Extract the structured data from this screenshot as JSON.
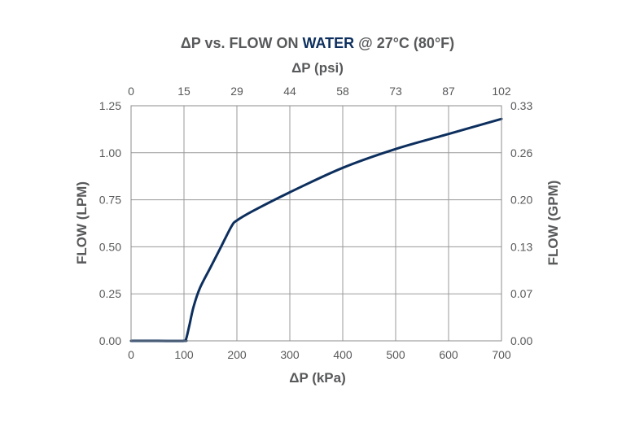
{
  "chart_data": {
    "type": "line",
    "title_parts": [
      "ΔP vs. FLOW ON ",
      "WATER",
      " @ 27°C (80°F)"
    ],
    "title_accent_color": "#0d2f5e",
    "xlabel": "ΔP (kPa)",
    "x2label": "ΔP (psi)",
    "ylabel": "FLOW (LPM)",
    "y2label": "FLOW (GPM)",
    "xlim": [
      0,
      700
    ],
    "ylim": [
      0,
      1.25
    ],
    "x_ticks": [
      "0",
      "100",
      "200",
      "300",
      "400",
      "500",
      "600",
      "700"
    ],
    "x2_ticks": [
      "0",
      "15",
      "29",
      "44",
      "58",
      "73",
      "87",
      "102"
    ],
    "y_ticks": [
      "0.00",
      "0.25",
      "0.50",
      "0.75",
      "1.00",
      "1.25"
    ],
    "y2_ticks": [
      "0.00",
      "0.07",
      "0.13",
      "0.20",
      "0.26",
      "0.33"
    ],
    "grid": true,
    "line_color": "#0d2f5e",
    "series": [
      {
        "x": [
          0,
          50,
          100,
          104,
          110,
          118,
          130,
          150,
          170,
          190,
          200,
          230,
          300,
          400,
          500,
          600,
          700
        ],
        "y": [
          0,
          0,
          0,
          0.01,
          0.08,
          0.18,
          0.28,
          0.39,
          0.5,
          0.61,
          0.64,
          0.69,
          0.79,
          0.92,
          1.02,
          1.1,
          1.18
        ]
      }
    ]
  }
}
